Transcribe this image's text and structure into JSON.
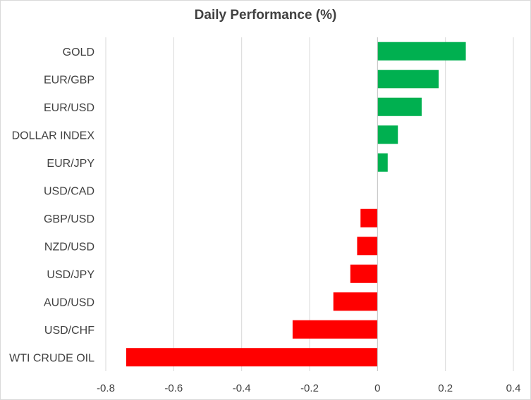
{
  "chart_data": {
    "type": "bar",
    "orientation": "horizontal",
    "title": "Daily Performance (%)",
    "xlabel": "",
    "ylabel": "",
    "xlim": [
      -0.8,
      0.4
    ],
    "xticks": [
      -0.8,
      -0.6,
      -0.4,
      -0.2,
      0,
      0.2,
      0.4
    ],
    "xtick_labels": [
      "-0.8",
      "-0.6",
      "-0.4",
      "-0.2",
      "0",
      "0.2",
      "0.4"
    ],
    "grid": true,
    "legend": "none",
    "categories": [
      "GOLD",
      "EUR/GBP",
      "EUR/USD",
      "DOLLAR INDEX",
      "EUR/JPY",
      "USD/CAD",
      "GBP/USD",
      "NZD/USD",
      "USD/JPY",
      "AUD/USD",
      "USD/CHF",
      "WTI CRUDE OIL"
    ],
    "values": [
      0.26,
      0.18,
      0.13,
      0.06,
      0.03,
      0.0,
      -0.05,
      -0.06,
      -0.08,
      -0.13,
      -0.25,
      -0.74
    ],
    "colors": {
      "positive": "#00b050",
      "negative": "#ff0000",
      "grid": "#d9d9d9",
      "axis": "#bfbfbf",
      "text": "#404040"
    }
  }
}
